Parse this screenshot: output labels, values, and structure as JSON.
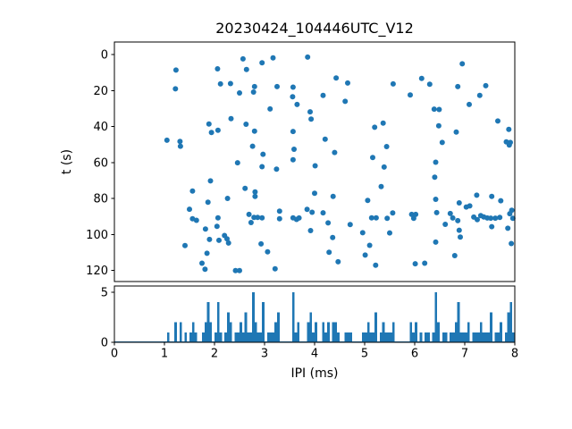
{
  "title": "20230424_104446UTC_V12",
  "colors": {
    "marker": "#1f77b4",
    "axis": "#000000",
    "background": "#ffffff"
  },
  "chart_data": [
    {
      "type": "scatter",
      "title": "20230424_104446UTC_V12",
      "xlabel": "",
      "ylabel": "t (s)",
      "xlim": [
        0,
        8
      ],
      "ylim": [
        -7,
        126.1
      ],
      "y_axis_inverted": true,
      "x_ticks": [
        0,
        1,
        2,
        3,
        4,
        5,
        6,
        7,
        8
      ],
      "x_tick_labels_visible": false,
      "y_ticks": [
        0,
        20,
        40,
        60,
        80,
        100,
        120
      ],
      "grid": false,
      "legend": "none",
      "points_xy": [
        [
          1.23,
          8.6
        ],
        [
          1.22,
          19.0
        ],
        [
          2.06,
          7.9
        ],
        [
          2.12,
          16.3
        ],
        [
          2.32,
          16.1
        ],
        [
          2.57,
          2.4
        ],
        [
          2.64,
          8.3
        ],
        [
          2.5,
          21.3
        ],
        [
          2.8,
          17.8
        ],
        [
          2.78,
          20.8
        ],
        [
          2.95,
          4.5
        ],
        [
          3.17,
          1.8
        ],
        [
          3.25,
          17.8
        ],
        [
          3.57,
          18.1
        ],
        [
          3.56,
          23.4
        ],
        [
          3.65,
          27.7
        ],
        [
          3.11,
          30.2
        ],
        [
          3.86,
          1.4
        ],
        [
          3.91,
          31.8
        ],
        [
          3.93,
          35.8
        ],
        [
          2.33,
          35.6
        ],
        [
          4.43,
          13.0
        ],
        [
          4.66,
          15.8
        ],
        [
          4.17,
          22.7
        ],
        [
          4.61,
          26.0
        ],
        [
          5.57,
          16.3
        ],
        [
          5.91,
          22.4
        ],
        [
          6.14,
          13.2
        ],
        [
          6.3,
          16.5
        ],
        [
          6.39,
          30.3
        ],
        [
          6.49,
          30.5
        ],
        [
          6.95,
          5.1
        ],
        [
          6.86,
          17.8
        ],
        [
          7.09,
          27.7
        ],
        [
          7.3,
          22.7
        ],
        [
          7.42,
          17.3
        ],
        [
          1.05,
          47.6
        ],
        [
          1.31,
          48.3
        ],
        [
          1.32,
          50.9
        ],
        [
          1.89,
          38.6
        ],
        [
          1.94,
          43.3
        ],
        [
          2.07,
          42.0
        ],
        [
          2.63,
          38.7
        ],
        [
          2.8,
          42.5
        ],
        [
          2.76,
          50.9
        ],
        [
          2.97,
          55.4
        ],
        [
          2.46,
          60.1
        ],
        [
          2.95,
          62.3
        ],
        [
          3.24,
          63.6
        ],
        [
          1.92,
          70.2
        ],
        [
          1.56,
          75.8
        ],
        [
          2.61,
          74.3
        ],
        [
          2.81,
          76.3
        ],
        [
          2.81,
          78.8
        ],
        [
          3.57,
          42.7
        ],
        [
          3.59,
          52.6
        ],
        [
          3.57,
          58.4
        ],
        [
          2.26,
          79.9
        ],
        [
          1.87,
          82.0
        ],
        [
          5.2,
          40.4
        ],
        [
          5.37,
          38.1
        ],
        [
          4.21,
          47.0
        ],
        [
          4.4,
          54.4
        ],
        [
          5.44,
          51.1
        ],
        [
          5.16,
          57.2
        ],
        [
          4.01,
          61.8
        ],
        [
          5.39,
          62.5
        ],
        [
          5.33,
          73.3
        ],
        [
          4.0,
          77.1
        ],
        [
          4.37,
          78.8
        ],
        [
          6.48,
          39.6
        ],
        [
          6.83,
          43.0
        ],
        [
          6.55,
          48.8
        ],
        [
          6.42,
          59.8
        ],
        [
          6.4,
          68.1
        ],
        [
          7.66,
          36.9
        ],
        [
          7.88,
          41.5
        ],
        [
          7.83,
          48.5
        ],
        [
          7.91,
          48.8
        ],
        [
          7.89,
          50.2
        ],
        [
          6.42,
          80.4
        ],
        [
          7.24,
          78.1
        ],
        [
          7.54,
          78.8
        ],
        [
          7.72,
          81.2
        ],
        [
          5.06,
          81.0
        ],
        [
          6.89,
          82.4
        ],
        [
          1.5,
          85.9
        ],
        [
          1.56,
          91.2
        ],
        [
          1.64,
          92.1
        ],
        [
          1.82,
          96.9
        ],
        [
          2.07,
          90.7
        ],
        [
          2.05,
          95.4
        ],
        [
          1.9,
          102.7
        ],
        [
          2.09,
          103.2
        ],
        [
          2.2,
          100.5
        ],
        [
          2.25,
          102.4
        ],
        [
          2.28,
          104.7
        ],
        [
          1.41,
          106.1
        ],
        [
          1.85,
          110.4
        ],
        [
          1.75,
          115.9
        ],
        [
          1.81,
          119.3
        ],
        [
          2.42,
          120.0
        ],
        [
          2.5,
          120.0
        ],
        [
          2.69,
          88.8
        ],
        [
          2.79,
          90.5
        ],
        [
          2.86,
          90.5
        ],
        [
          2.95,
          90.7
        ],
        [
          2.73,
          93.3
        ],
        [
          2.93,
          105.2
        ],
        [
          3.06,
          109.6
        ],
        [
          3.21,
          119.0
        ],
        [
          3.3,
          87.0
        ],
        [
          3.3,
          91.2
        ],
        [
          3.57,
          90.7
        ],
        [
          3.64,
          91.6
        ],
        [
          3.69,
          90.8
        ],
        [
          3.85,
          86.0
        ],
        [
          3.92,
          97.8
        ],
        [
          3.95,
          87.6
        ],
        [
          4.17,
          87.9
        ],
        [
          4.27,
          93.5
        ],
        [
          4.36,
          101.6
        ],
        [
          4.71,
          94.4
        ],
        [
          4.96,
          99.0
        ],
        [
          5.14,
          90.7
        ],
        [
          5.23,
          90.7
        ],
        [
          5.45,
          91.0
        ],
        [
          5.56,
          88.0
        ],
        [
          5.5,
          99.1
        ],
        [
          5.1,
          106.0
        ],
        [
          5.01,
          111.4
        ],
        [
          5.22,
          117.0
        ],
        [
          4.29,
          109.8
        ],
        [
          4.47,
          115.1
        ],
        [
          5.94,
          88.8
        ],
        [
          6.02,
          88.8
        ],
        [
          5.98,
          91.0
        ],
        [
          6.44,
          87.8
        ],
        [
          6.61,
          94.3
        ],
        [
          6.71,
          88.3
        ],
        [
          6.76,
          90.8
        ],
        [
          6.86,
          92.3
        ],
        [
          6.89,
          97.6
        ],
        [
          6.91,
          101.4
        ],
        [
          6.42,
          104.2
        ],
        [
          6.8,
          111.7
        ],
        [
          7.03,
          84.7
        ],
        [
          7.1,
          84.1
        ],
        [
          7.18,
          90.3
        ],
        [
          7.25,
          91.7
        ],
        [
          7.32,
          89.5
        ],
        [
          7.38,
          90.2
        ],
        [
          7.45,
          90.8
        ],
        [
          7.52,
          90.9
        ],
        [
          7.61,
          90.9
        ],
        [
          7.7,
          90.5
        ],
        [
          7.9,
          88.4
        ],
        [
          7.96,
          91.0
        ],
        [
          7.54,
          95.6
        ],
        [
          7.86,
          96.5
        ],
        [
          7.94,
          86.5
        ],
        [
          7.93,
          105.0
        ],
        [
          6.01,
          116.2
        ],
        [
          6.2,
          115.9
        ]
      ]
    },
    {
      "type": "bar",
      "title": "",
      "xlabel": "IPI (ms)",
      "ylabel": "",
      "xlim": [
        0,
        8
      ],
      "ylim": [
        0,
        5.6
      ],
      "x_ticks": [
        0,
        1,
        2,
        3,
        4,
        5,
        6,
        7,
        8
      ],
      "y_ticks": [
        0,
        5
      ],
      "grid": false,
      "bin_width_ms": 0.05,
      "max_count": 5,
      "description": "histogram of the IPI values shown in the scatter panel above"
    }
  ]
}
